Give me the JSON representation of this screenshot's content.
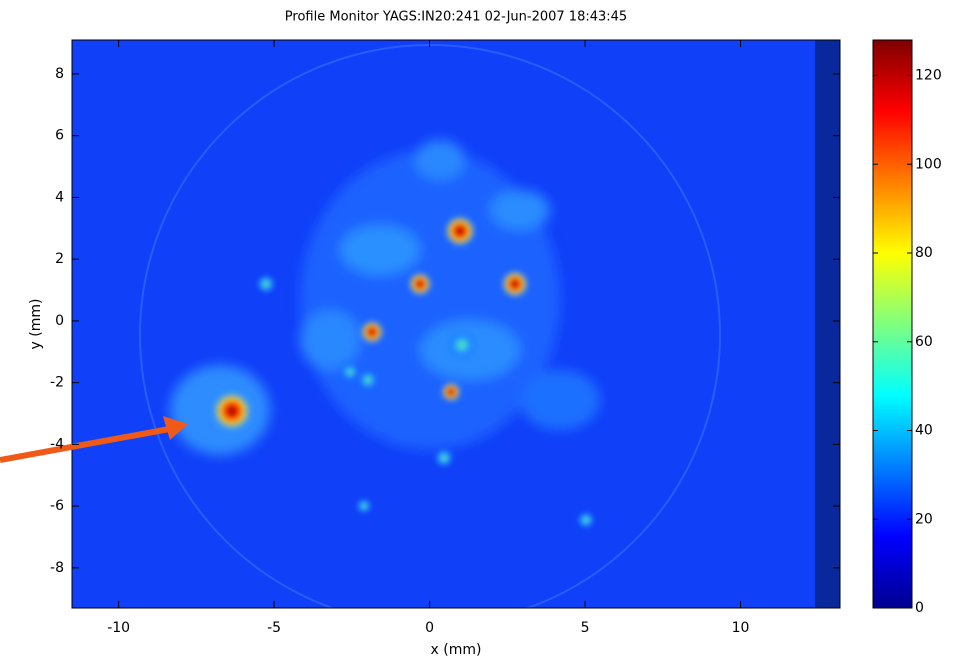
{
  "chart_data": {
    "type": "image",
    "title": "Profile Monitor YAGS:IN20:241 02-Jun-2007 18:43:45",
    "x_label": "x (mm)",
    "y_label": "y (mm)",
    "xlim": [
      -11.5,
      13.2
    ],
    "ylim": [
      -9.3,
      9.1
    ],
    "xticks": [
      -10,
      -5,
      0,
      5,
      10
    ],
    "yticks": [
      -8,
      -6,
      -4,
      -2,
      0,
      2,
      4,
      6,
      8
    ],
    "colormap": "jet",
    "clim": [
      0,
      128
    ],
    "cticks": [
      0,
      20,
      40,
      60,
      80,
      100,
      120
    ]
  }
}
